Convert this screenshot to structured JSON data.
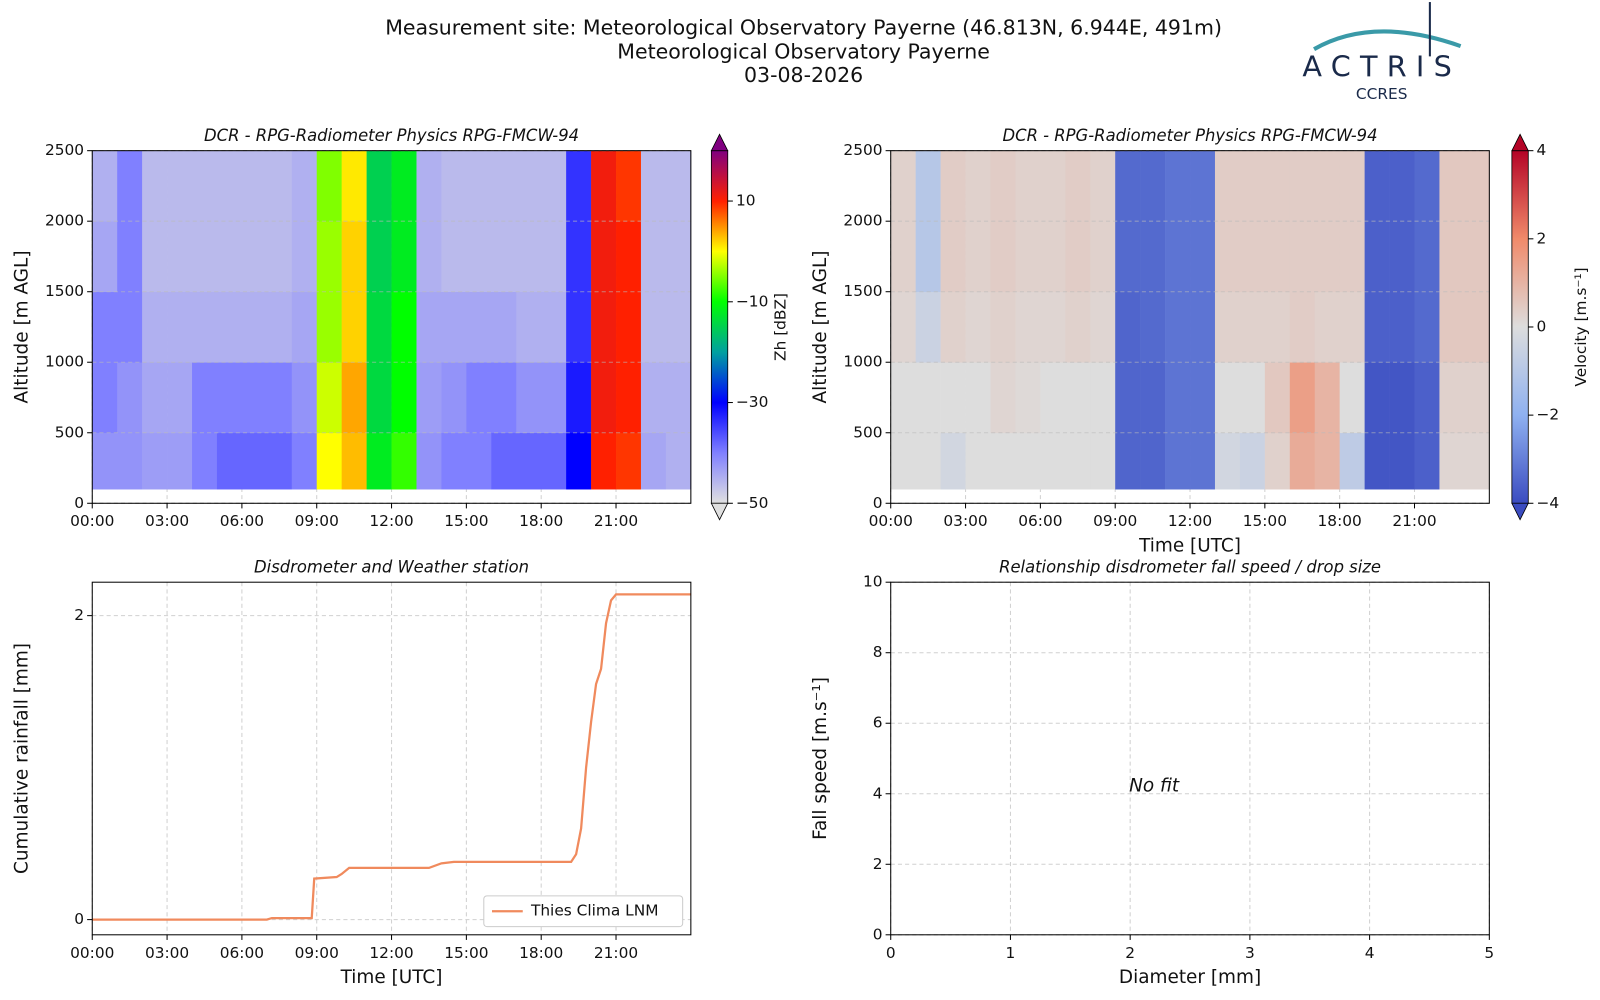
{
  "header": {
    "lines": [
      "Measurement site: Meteorological Observatory Payerne (46.813N, 6.944E, 491m)",
      "Meteorological Observatory Payerne",
      "03-08-2026"
    ],
    "logo": "ACTRIS",
    "logo_sub": "CCRES"
  },
  "chart_data": [
    {
      "type": "heatmap",
      "title": "DCR - RPG-Radiometer Physics RPG-FMCW-94",
      "ylabel": "Altitude [m AGL]",
      "colorbar_label": "Zh [dBZ]",
      "x_edges": [
        0,
        1,
        2,
        3,
        4,
        5,
        6,
        7,
        8,
        9,
        10,
        11,
        12,
        13,
        14,
        15,
        16,
        17,
        18,
        19,
        20,
        21,
        22,
        23,
        24
      ],
      "y_edges": [
        100,
        500,
        1000,
        1500,
        2000,
        2500
      ],
      "z": [
        [
          -42,
          -42,
          -43,
          -43,
          -40,
          -38,
          -38,
          -38,
          -40,
          0,
          3,
          -12,
          -8,
          -42,
          -40,
          -40,
          -38,
          -38,
          -38,
          -30,
          10,
          9,
          -44,
          -45
        ],
        [
          -40,
          -42,
          -44,
          -44,
          -40,
          -40,
          -40,
          -40,
          -42,
          -2,
          4,
          -14,
          -10,
          -43,
          -42,
          -40,
          -40,
          -42,
          -42,
          -32,
          11,
          10,
          -45,
          -45
        ],
        [
          -40,
          -40,
          -45,
          -45,
          -45,
          -45,
          -45,
          -45,
          -44,
          -4,
          2,
          -14,
          -10,
          -44,
          -44,
          -44,
          -44,
          -45,
          -45,
          -34,
          11,
          10,
          -46,
          -46
        ],
        [
          -44,
          -40,
          -46,
          -46,
          -46,
          -46,
          -46,
          -46,
          -45,
          -4,
          2,
          -15,
          -12,
          -45,
          -46,
          -46,
          -46,
          -46,
          -46,
          -34,
          11,
          10,
          -46,
          -46
        ],
        [
          -45,
          -40,
          -46,
          -46,
          -46,
          -46,
          -46,
          -46,
          -45,
          -5,
          1,
          -15,
          -12,
          -45,
          -46,
          -46,
          -46,
          -46,
          -46,
          -34,
          11,
          9,
          -46,
          -46
        ]
      ],
      "zlim": [
        -50,
        20
      ],
      "colormap": [
        "#e0e0e0",
        "#8080ff",
        "#0000ff",
        "#00a0a0",
        "#00ff00",
        "#ffff00",
        "#ff2000",
        "#800080"
      ],
      "zticks": [
        {
          "value": -50,
          "label": "−50"
        },
        {
          "value": -30,
          "label": "−30"
        },
        {
          "value": -10,
          "label": "−10"
        },
        10
      ],
      "xlim": [
        0,
        24
      ],
      "xticks": [
        {
          "value": 0,
          "label": "00:00"
        },
        {
          "value": 3,
          "label": "03:00"
        },
        {
          "value": 6,
          "label": "06:00"
        },
        {
          "value": 9,
          "label": "09:00"
        },
        {
          "value": 12,
          "label": "12:00"
        },
        {
          "value": 15,
          "label": "15:00"
        },
        {
          "value": 18,
          "label": "18:00"
        },
        {
          "value": 21,
          "label": "21:00"
        }
      ],
      "ylim": [
        0,
        2500
      ],
      "yticks": [
        0,
        500,
        1000,
        1500,
        2000,
        2500
      ],
      "grid": true
    },
    {
      "type": "heatmap",
      "title": "DCR - RPG-Radiometer Physics RPG-FMCW-94",
      "xlabel": "Time [UTC]",
      "ylabel": "Altitude [m AGL]",
      "colorbar_label": "Velocity [m.s⁻¹]",
      "x_edges": [
        0,
        1,
        2,
        3,
        4,
        5,
        6,
        7,
        8,
        9,
        10,
        11,
        12,
        13,
        14,
        15,
        16,
        17,
        18,
        19,
        20,
        21,
        22,
        23,
        24
      ],
      "y_edges": [
        100,
        500,
        1000,
        1500,
        2000,
        2500
      ],
      "z": [
        [
          0,
          0,
          -0.3,
          0,
          0,
          0,
          0,
          0,
          0,
          -3.5,
          -3.5,
          -3.2,
          -3.2,
          -0.3,
          -0.5,
          0.3,
          1.2,
          1,
          -0.8,
          -3.8,
          -3.8,
          -3.6,
          0.2,
          0.2
        ],
        [
          0,
          0,
          0,
          0,
          0.2,
          0.1,
          0,
          0,
          0,
          -3.5,
          -3.5,
          -3.2,
          -3.2,
          0,
          0,
          0.5,
          1.5,
          1,
          0,
          -3.8,
          -3.8,
          -3.6,
          0.3,
          0.3
        ],
        [
          0.2,
          -0.5,
          0.3,
          0.2,
          0.3,
          0.2,
          0.2,
          0.3,
          0.2,
          -3.5,
          -3.4,
          -3.2,
          -3.2,
          0.3,
          0.3,
          0.3,
          0.4,
          0.3,
          0.3,
          -3.6,
          -3.6,
          -3.4,
          0.5,
          0.5
        ],
        [
          0.3,
          -1,
          0.4,
          0.3,
          0.4,
          0.3,
          0.3,
          0.4,
          0.3,
          -3.4,
          -3.4,
          -3.2,
          -3.2,
          0.4,
          0.4,
          0.4,
          0.4,
          0.4,
          0.4,
          -3.6,
          -3.6,
          -3.4,
          0.5,
          0.5
        ],
        [
          0.3,
          -1,
          0.4,
          0.3,
          0.4,
          0.3,
          0.3,
          0.4,
          0.3,
          -3.4,
          -3.4,
          -3.2,
          -3.2,
          0.4,
          0.4,
          0.4,
          0.4,
          0.4,
          0.4,
          -3.6,
          -3.6,
          -3.4,
          0.5,
          0.5
        ]
      ],
      "zlim": [
        -4,
        4
      ],
      "colormap": [
        "#3b4cc0",
        "#8fb1f0",
        "#dddddd",
        "#f08a6a",
        "#b40426"
      ],
      "zticks": [
        {
          "value": -4,
          "label": "−4"
        },
        {
          "value": -2,
          "label": "−2"
        },
        0,
        2,
        4
      ],
      "xlim": [
        0,
        24
      ],
      "xticks": [
        {
          "value": 0,
          "label": "00:00"
        },
        {
          "value": 3,
          "label": "03:00"
        },
        {
          "value": 6,
          "label": "06:00"
        },
        {
          "value": 9,
          "label": "09:00"
        },
        {
          "value": 12,
          "label": "12:00"
        },
        {
          "value": 15,
          "label": "15:00"
        },
        {
          "value": 18,
          "label": "18:00"
        },
        {
          "value": 21,
          "label": "21:00"
        }
      ],
      "ylim": [
        0,
        2500
      ],
      "yticks": [
        0,
        500,
        1000,
        1500,
        2000,
        2500
      ],
      "grid": true
    },
    {
      "type": "line",
      "title": "Disdrometer and Weather station",
      "xlabel": "Time [UTC]",
      "ylabel": "Cumulative rainfall [mm]",
      "x": [
        0,
        7,
        7.2,
        8.8,
        8.9,
        9.8,
        10,
        10.3,
        11,
        13.5,
        14,
        14.5,
        19.2,
        19.4,
        19.6,
        19.8,
        20,
        20.2,
        20.4,
        20.6,
        20.8,
        21,
        24
      ],
      "series": [
        {
          "name": "Thies Clima LNM",
          "color": "#f08a5d",
          "values": [
            0,
            0,
            0.01,
            0.01,
            0.27,
            0.28,
            0.3,
            0.34,
            0.34,
            0.34,
            0.37,
            0.38,
            0.38,
            0.43,
            0.6,
            1.0,
            1.3,
            1.55,
            1.65,
            1.95,
            2.1,
            2.14,
            2.14
          ]
        }
      ],
      "legend": "lower right",
      "xlim": [
        0,
        24
      ],
      "xticks": [
        {
          "value": 0,
          "label": "00:00"
        },
        {
          "value": 3,
          "label": "03:00"
        },
        {
          "value": 6,
          "label": "06:00"
        },
        {
          "value": 9,
          "label": "09:00"
        },
        {
          "value": 12,
          "label": "12:00"
        },
        {
          "value": 15,
          "label": "15:00"
        },
        {
          "value": 18,
          "label": "18:00"
        },
        {
          "value": 21,
          "label": "21:00"
        }
      ],
      "ylim": [
        -0.1,
        2.22
      ],
      "yticks": [
        0,
        2
      ],
      "grid": true
    },
    {
      "type": "scatter",
      "title": "Relationship disdrometer fall speed / drop size",
      "xlabel": "Diameter [mm]",
      "ylabel": "Fall speed [m.s⁻¹]",
      "annotation": "No fit",
      "xlim": [
        0,
        5
      ],
      "xticks": [
        0,
        1,
        2,
        3,
        4,
        5
      ],
      "ylim": [
        0,
        10
      ],
      "yticks": [
        0,
        2,
        4,
        6,
        8,
        10
      ],
      "grid": true
    }
  ]
}
